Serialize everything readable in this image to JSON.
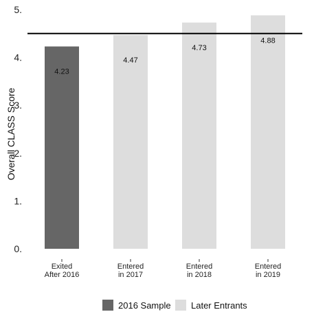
{
  "chart_data": {
    "type": "bar",
    "ylabel": "Overall CLASS Score",
    "xlabel": "",
    "ylim": [
      0,
      5
    ],
    "yticks": [
      0,
      1,
      2,
      3,
      4,
      5
    ],
    "grid": false,
    "legend_position": "bottom",
    "reference_line": 4.5,
    "categories": [
      [
        "Exited",
        "After 2016"
      ],
      [
        "Entered",
        "in 2017"
      ],
      [
        "Entered",
        "in 2018"
      ],
      [
        "Entered",
        "in 2019"
      ]
    ],
    "values": [
      4.23,
      4.47,
      4.73,
      4.88
    ],
    "value_labels": [
      "4.23",
      "4.47",
      "4.73",
      "4.88"
    ],
    "series_of_bar": [
      0,
      1,
      1,
      1
    ],
    "legend": [
      {
        "label": "2016 Sample",
        "color": "#666666"
      },
      {
        "label": "Later Entrants",
        "color": "#dddddd"
      }
    ]
  }
}
